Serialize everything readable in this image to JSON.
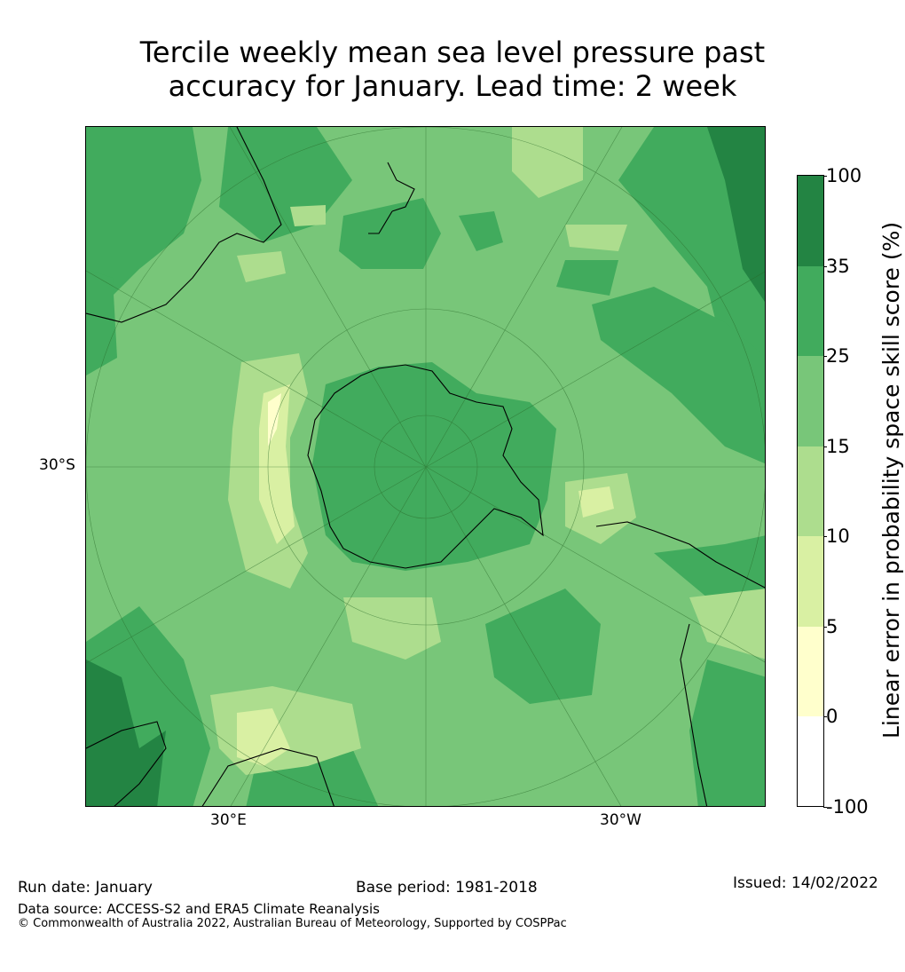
{
  "title_line1": "Tercile weekly mean sea level pressure past",
  "title_line2": "accuracy for January. Lead time: 2 week",
  "map": {
    "projection": "south-polar-stereographic",
    "lat_label": "30°S",
    "lon_labels": {
      "east": "30°E",
      "west": "30°W"
    },
    "colors": {
      "c0": "#ffffff",
      "c5": "#ffffcc",
      "c10": "#d9f0a3",
      "c15": "#addd8e",
      "c25": "#78c679",
      "c35": "#41ab5d",
      "c100": "#238443"
    }
  },
  "colorbar": {
    "label": "Linear error in probability space skill score (%)",
    "ticks": [
      "100",
      "35",
      "25",
      "15",
      "10",
      "5",
      "0",
      "-100"
    ],
    "colors": [
      "#238443",
      "#41ab5d",
      "#78c679",
      "#addd8e",
      "#d9f0a3",
      "#ffffcc",
      "#ffffff"
    ]
  },
  "footer": {
    "run_date": "Run date: January",
    "base_period": "Base period: 1981-2018",
    "issued": "Issued: 14/02/2022",
    "data_source": "Data source: ACCESS-S2 and ERA5 Climate Reanalysis",
    "copyright": "© Commonwealth of Australia 2022, Australian Bureau of Meteorology, Supported by COSPPac"
  }
}
